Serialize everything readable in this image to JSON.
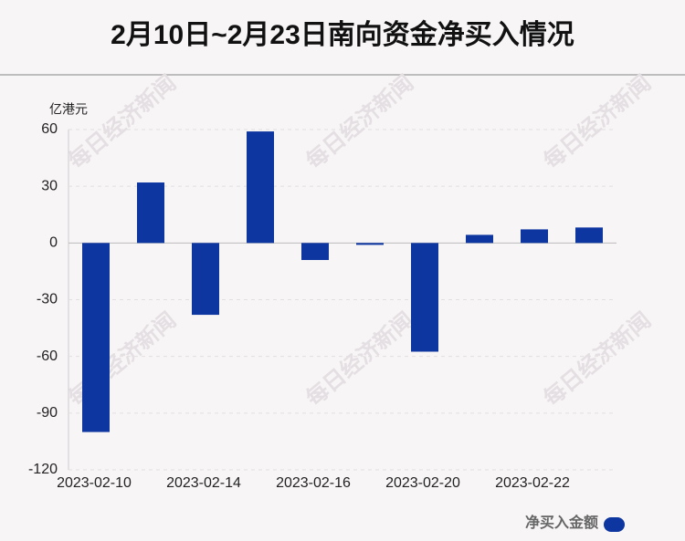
{
  "chart_data": {
    "type": "bar",
    "title": "2月10日~2月23日南向资金净买入情况",
    "y_label": "亿港元",
    "watermark": "每日经济新闻",
    "categories": [
      "2023-02-10",
      null,
      "2023-02-14",
      null,
      "2023-02-16",
      null,
      "2023-02-20",
      null,
      "2023-02-22",
      null
    ],
    "series": [
      {
        "name": "净买入金额",
        "color": "#0e36a0",
        "values": [
          -100,
          32,
          -38,
          59,
          -9,
          -1,
          -57.5,
          4.3,
          7.2,
          8.2
        ]
      }
    ],
    "ylim": [
      -120,
      60
    ],
    "yticks": [
      -120,
      -90,
      -60,
      -30,
      0,
      30,
      60
    ],
    "grid": true,
    "legend": "bottom-right"
  }
}
